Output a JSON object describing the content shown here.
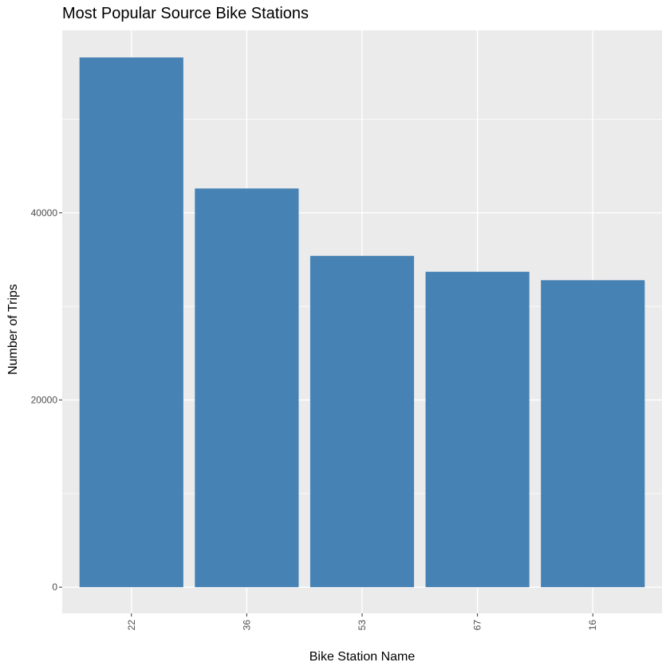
{
  "chart_data": {
    "type": "bar",
    "title": "Most Popular Source Bike Stations",
    "xlabel": "Bike Station Name",
    "ylabel": "Number of Trips",
    "categories": [
      "22",
      "36",
      "53",
      "67",
      "16"
    ],
    "values": [
      56600,
      42600,
      35400,
      33700,
      32800
    ],
    "ylim": [
      -2800,
      59500
    ],
    "yticks": [
      0,
      20000,
      40000
    ],
    "ytick_labels": [
      "0",
      "20000",
      "40000"
    ],
    "grid": true,
    "legend": "none",
    "colors": {
      "bar": "#4682b4",
      "panel": "#ebebeb",
      "grid": "#ffffff",
      "tick": "#333333",
      "tick_text": "#4d4d4d"
    }
  }
}
